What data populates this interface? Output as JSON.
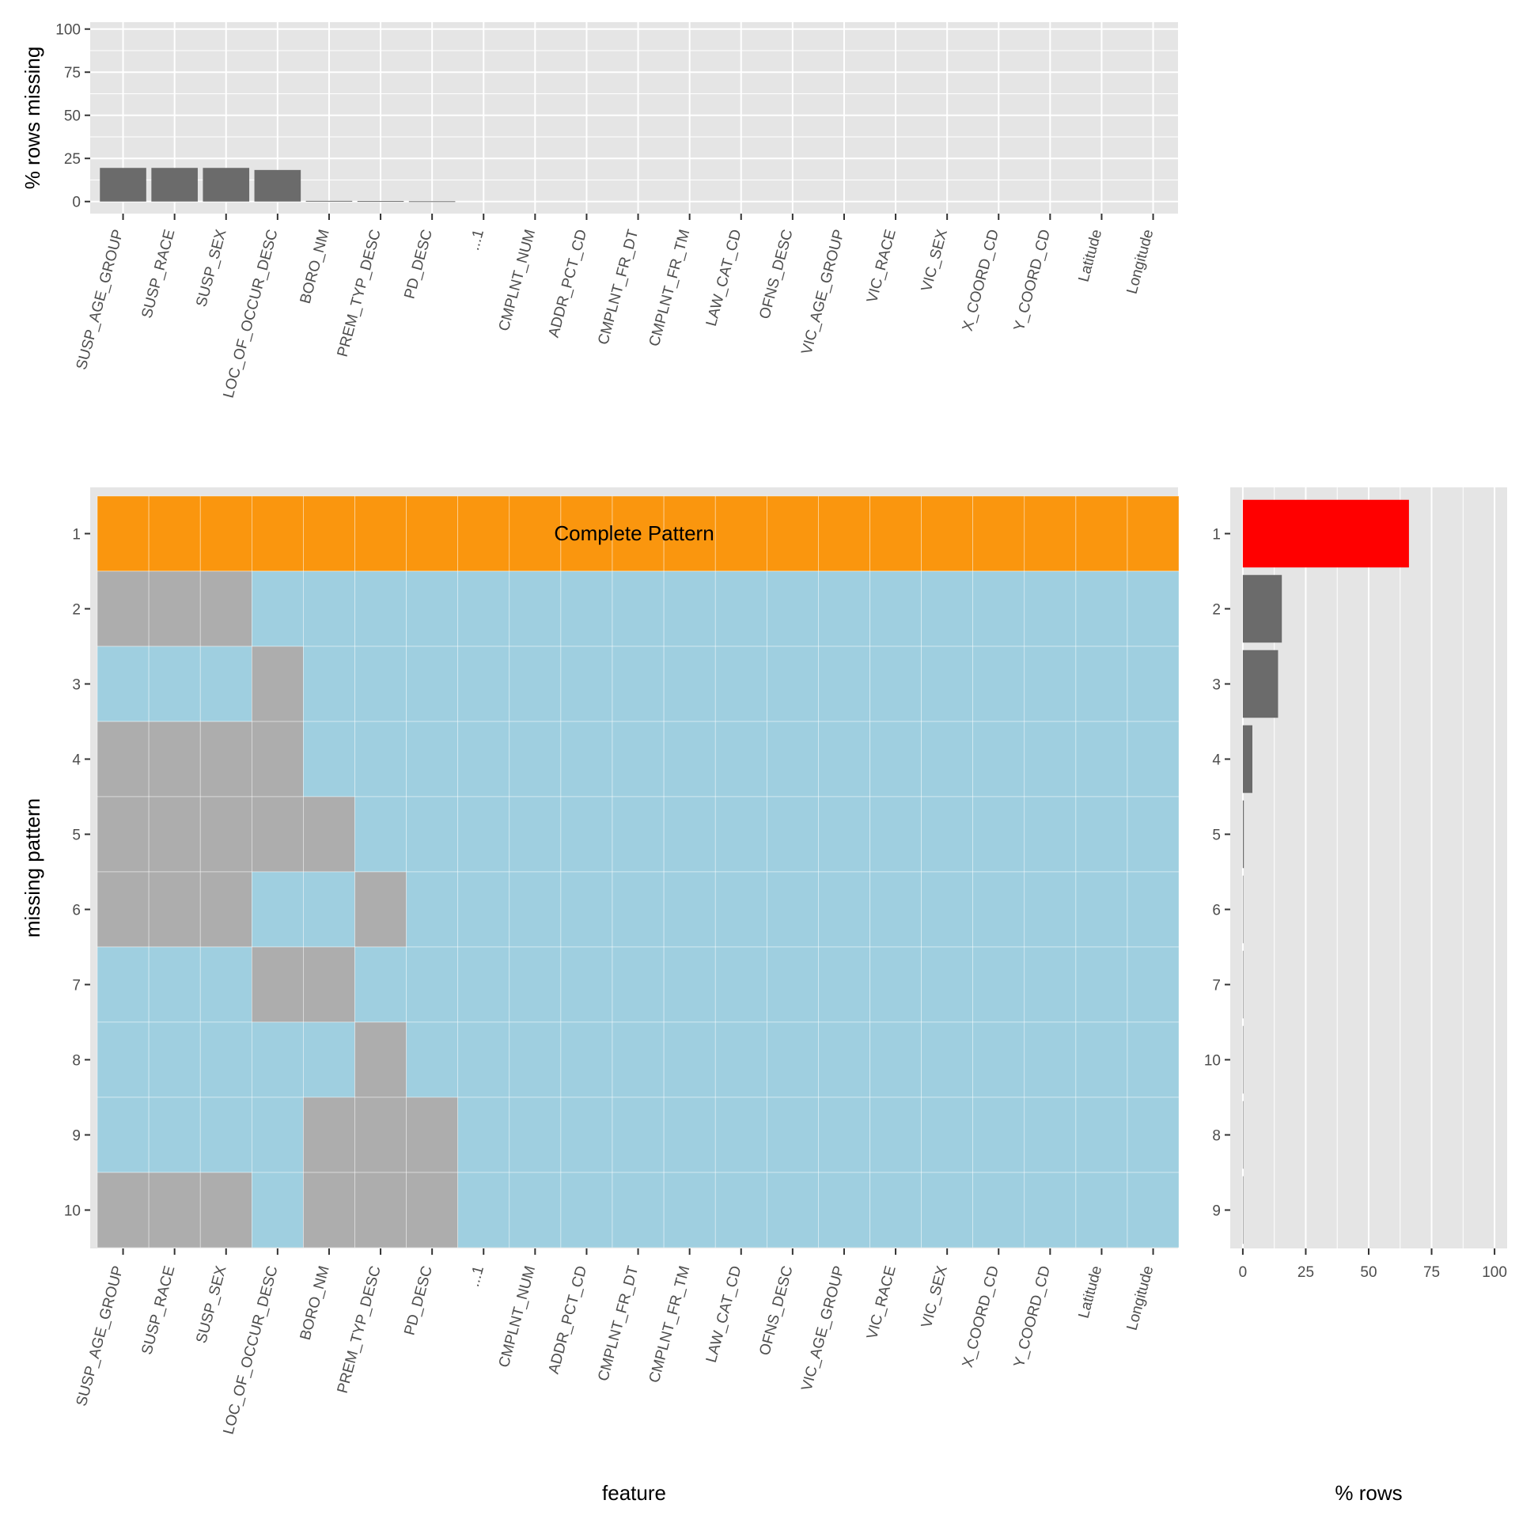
{
  "colors": {
    "panel_bg": "#e5e5e5",
    "grid": "#ffffff",
    "bar": "#6b6b6b",
    "missing": "#adadad",
    "present": "#9fcfe0",
    "complete": "#fa960e",
    "complete_count_bar": "#ff0000",
    "tick": "#333333",
    "tick_label": "#4d4d4d"
  },
  "chart_data": [
    {
      "type": "bar",
      "ylabel": "% rows missing",
      "ylim": [
        0,
        100
      ],
      "yticks": [
        "0",
        "25",
        "50",
        "75",
        "100"
      ],
      "grid": true,
      "categories": [
        "SUSP_AGE_GROUP",
        "SUSP_RACE",
        "SUSP_SEX",
        "LOC_OF_OCCUR_DESC",
        "BORO_NM",
        "PREM_TYP_DESC",
        "PD_DESC",
        "...1",
        "CMPLNT_NUM",
        "ADDR_PCT_CD",
        "CMPLNT_FR_DT",
        "CMPLNT_FR_TM",
        "LAW_CAT_CD",
        "OFNS_DESC",
        "VIC_AGE_GROUP",
        "VIC_RACE",
        "VIC_SEX",
        "X_COORD_CD",
        "Y_COORD_CD",
        "Latitude",
        "Longitude"
      ],
      "values": [
        19.5,
        19.5,
        19.5,
        18.3,
        0.4,
        0.3,
        0.2,
        0,
        0,
        0,
        0,
        0,
        0,
        0,
        0,
        0,
        0,
        0,
        0,
        0,
        0
      ]
    },
    {
      "type": "heatmap",
      "xlabel": "feature",
      "ylabel": "missing pattern",
      "grid": false,
      "columns": [
        "SUSP_AGE_GROUP",
        "SUSP_RACE",
        "SUSP_SEX",
        "LOC_OF_OCCUR_DESC",
        "BORO_NM",
        "PREM_TYP_DESC",
        "PD_DESC",
        "...1",
        "CMPLNT_NUM",
        "ADDR_PCT_CD",
        "CMPLNT_FR_DT",
        "CMPLNT_FR_TM",
        "LAW_CAT_CD",
        "OFNS_DESC",
        "VIC_AGE_GROUP",
        "VIC_RACE",
        "VIC_SEX",
        "X_COORD_CD",
        "Y_COORD_CD",
        "Latitude",
        "Longitude"
      ],
      "rows": [
        "1",
        "2",
        "3",
        "4",
        "5",
        "6",
        "7",
        "8",
        "9",
        "10"
      ],
      "complete_row": "1",
      "complete_label": "Complete Pattern",
      "missing_columns_by_row": [
        [],
        [
          "SUSP_AGE_GROUP",
          "SUSP_RACE",
          "SUSP_SEX"
        ],
        [
          "LOC_OF_OCCUR_DESC"
        ],
        [
          "SUSP_AGE_GROUP",
          "SUSP_RACE",
          "SUSP_SEX",
          "LOC_OF_OCCUR_DESC"
        ],
        [
          "SUSP_AGE_GROUP",
          "SUSP_RACE",
          "SUSP_SEX",
          "LOC_OF_OCCUR_DESC",
          "BORO_NM"
        ],
        [
          "SUSP_AGE_GROUP",
          "SUSP_RACE",
          "SUSP_SEX",
          "PREM_TYP_DESC"
        ],
        [
          "LOC_OF_OCCUR_DESC",
          "BORO_NM"
        ],
        [
          "PREM_TYP_DESC"
        ],
        [
          "BORO_NM",
          "PREM_TYP_DESC",
          "PD_DESC"
        ],
        [
          "SUSP_AGE_GROUP",
          "SUSP_RACE",
          "SUSP_SEX",
          "BORO_NM",
          "PREM_TYP_DESC",
          "PD_DESC"
        ]
      ]
    },
    {
      "type": "bar",
      "orientation": "horizontal",
      "xlabel": "% rows",
      "xlim": [
        0,
        100
      ],
      "xticks": [
        "0",
        "25",
        "50",
        "75",
        "100"
      ],
      "grid": true,
      "categories": [
        "1",
        "2",
        "3",
        "4",
        "5",
        "6",
        "7",
        "10",
        "8",
        "9"
      ],
      "values": [
        66,
        15.5,
        14,
        3.8,
        0.4,
        0.15,
        0.1,
        0.06,
        0.04,
        0.03
      ],
      "highlight_category": "1"
    }
  ]
}
